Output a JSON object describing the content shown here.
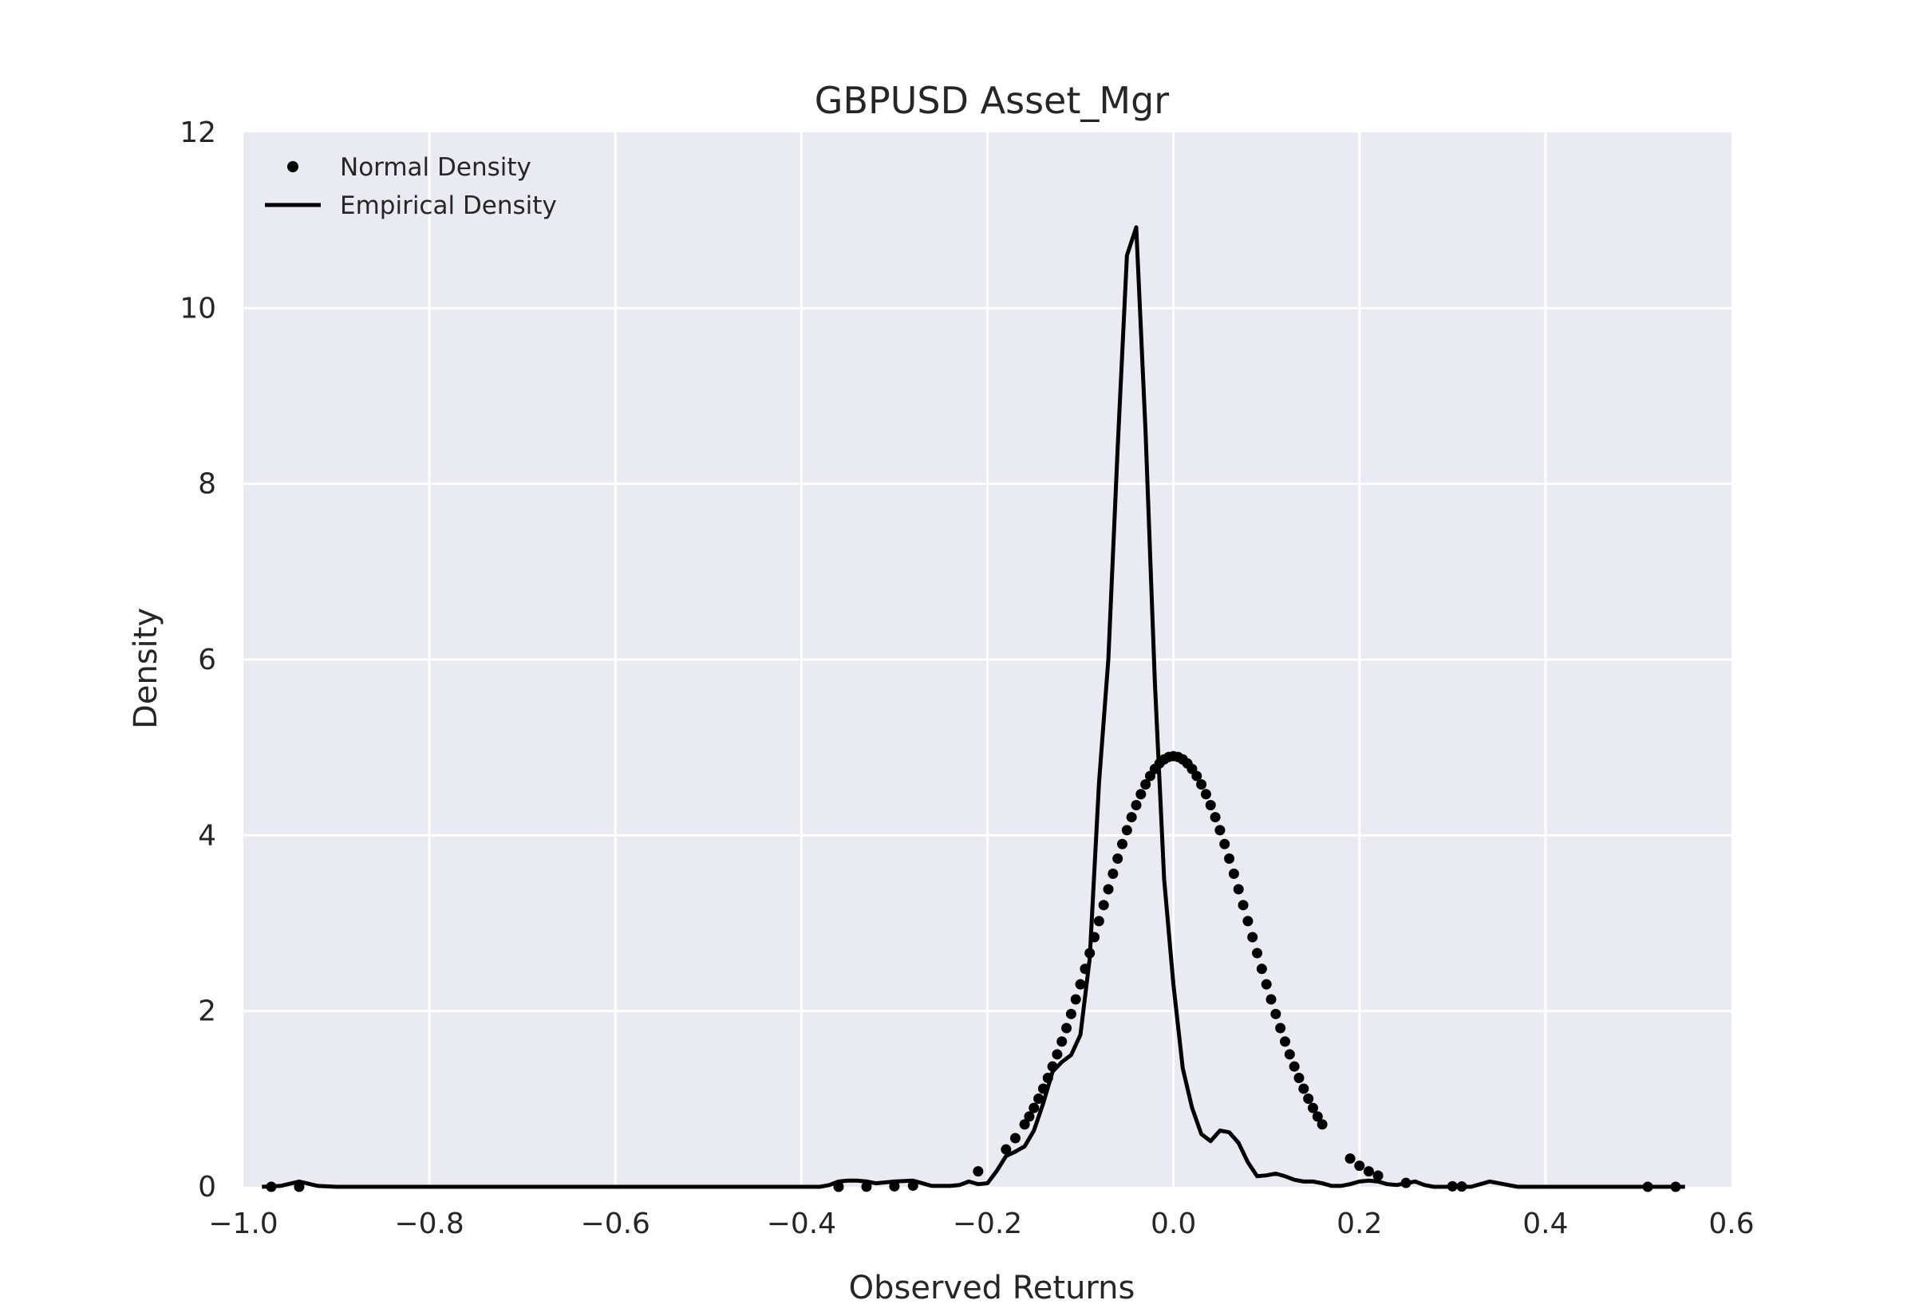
{
  "chart_data": {
    "type": "line",
    "title": "GBPUSD Asset_Mgr",
    "xlabel": "Observed Returns",
    "ylabel": "Density",
    "xlim": [
      -1.0,
      0.6
    ],
    "ylim": [
      0,
      12
    ],
    "xticks": [
      -1.0,
      -0.8,
      -0.6,
      -0.4,
      -0.2,
      0.0,
      0.2,
      0.4,
      0.6
    ],
    "xtick_labels": [
      "−1.0",
      "−0.8",
      "−0.6",
      "−0.4",
      "−0.2",
      "0.0",
      "0.2",
      "0.4",
      "0.6"
    ],
    "yticks": [
      0,
      2,
      4,
      6,
      8,
      10,
      12
    ],
    "ytick_labels": [
      "0",
      "2",
      "4",
      "6",
      "8",
      "10",
      "12"
    ],
    "grid": true,
    "legend_position": "top-left",
    "background_color": "#eaeaf2",
    "grid_color": "#ffffff",
    "series": [
      {
        "name": "Normal Density",
        "style": "points",
        "color": "#000000",
        "mean": 0.0,
        "std": 0.0814,
        "x": [
          -0.97,
          -0.94,
          -0.36,
          -0.33,
          -0.3,
          -0.28,
          -0.21,
          -0.18,
          -0.17,
          -0.16,
          -0.155,
          -0.15,
          -0.145,
          -0.14,
          -0.135,
          -0.13,
          -0.125,
          -0.12,
          -0.115,
          -0.11,
          -0.105,
          -0.1,
          -0.095,
          -0.09,
          -0.085,
          -0.08,
          -0.075,
          -0.07,
          -0.065,
          -0.06,
          -0.055,
          -0.05,
          -0.045,
          -0.04,
          -0.035,
          -0.03,
          -0.025,
          -0.02,
          -0.015,
          -0.01,
          -0.005,
          0.0,
          0.005,
          0.01,
          0.015,
          0.02,
          0.025,
          0.03,
          0.035,
          0.04,
          0.045,
          0.05,
          0.055,
          0.06,
          0.065,
          0.07,
          0.075,
          0.08,
          0.085,
          0.09,
          0.095,
          0.1,
          0.105,
          0.11,
          0.115,
          0.12,
          0.125,
          0.13,
          0.135,
          0.14,
          0.145,
          0.15,
          0.155,
          0.16,
          0.19,
          0.2,
          0.21,
          0.22,
          0.25,
          0.3,
          0.31,
          0.51,
          0.54
        ]
      },
      {
        "name": "Empirical Density",
        "style": "line",
        "color": "#000000",
        "x": [
          -0.98,
          -0.96,
          -0.94,
          -0.92,
          -0.9,
          -0.5,
          -0.38,
          -0.37,
          -0.36,
          -0.35,
          -0.34,
          -0.33,
          -0.32,
          -0.31,
          -0.3,
          -0.28,
          -0.27,
          -0.26,
          -0.25,
          -0.24,
          -0.23,
          -0.22,
          -0.21,
          -0.2,
          -0.19,
          -0.18,
          -0.17,
          -0.16,
          -0.15,
          -0.14,
          -0.13,
          -0.12,
          -0.11,
          -0.1,
          -0.09,
          -0.08,
          -0.07,
          -0.06,
          -0.05,
          -0.04,
          -0.03,
          -0.02,
          -0.01,
          0.0,
          0.01,
          0.02,
          0.03,
          0.04,
          0.05,
          0.06,
          0.07,
          0.08,
          0.09,
          0.1,
          0.11,
          0.12,
          0.13,
          0.14,
          0.15,
          0.16,
          0.17,
          0.18,
          0.19,
          0.2,
          0.21,
          0.22,
          0.23,
          0.24,
          0.25,
          0.26,
          0.27,
          0.28,
          0.29,
          0.3,
          0.31,
          0.32,
          0.33,
          0.34,
          0.35,
          0.36,
          0.37,
          0.38,
          0.4,
          0.45,
          0.48,
          0.5,
          0.51,
          0.53,
          0.55
        ],
        "y": [
          0.0,
          0.01,
          0.06,
          0.01,
          0.0,
          0.0,
          0.0,
          0.02,
          0.06,
          0.07,
          0.07,
          0.06,
          0.04,
          0.05,
          0.06,
          0.07,
          0.04,
          0.01,
          0.01,
          0.01,
          0.02,
          0.06,
          0.03,
          0.04,
          0.18,
          0.35,
          0.4,
          0.46,
          0.64,
          0.95,
          1.31,
          1.42,
          1.5,
          1.73,
          2.6,
          4.6,
          6.0,
          8.4,
          10.6,
          10.92,
          8.6,
          5.75,
          3.5,
          2.3,
          1.35,
          0.9,
          0.6,
          0.52,
          0.64,
          0.62,
          0.5,
          0.28,
          0.12,
          0.13,
          0.15,
          0.12,
          0.08,
          0.06,
          0.06,
          0.04,
          0.01,
          0.01,
          0.03,
          0.06,
          0.07,
          0.06,
          0.03,
          0.02,
          0.04,
          0.06,
          0.02,
          0.0,
          0.0,
          0.0,
          0.0,
          0.0,
          0.03,
          0.06,
          0.04,
          0.02,
          0.0,
          0.0,
          0.0,
          0.0,
          0.0,
          0.0,
          0.0,
          0.0,
          0.0
        ]
      }
    ]
  }
}
